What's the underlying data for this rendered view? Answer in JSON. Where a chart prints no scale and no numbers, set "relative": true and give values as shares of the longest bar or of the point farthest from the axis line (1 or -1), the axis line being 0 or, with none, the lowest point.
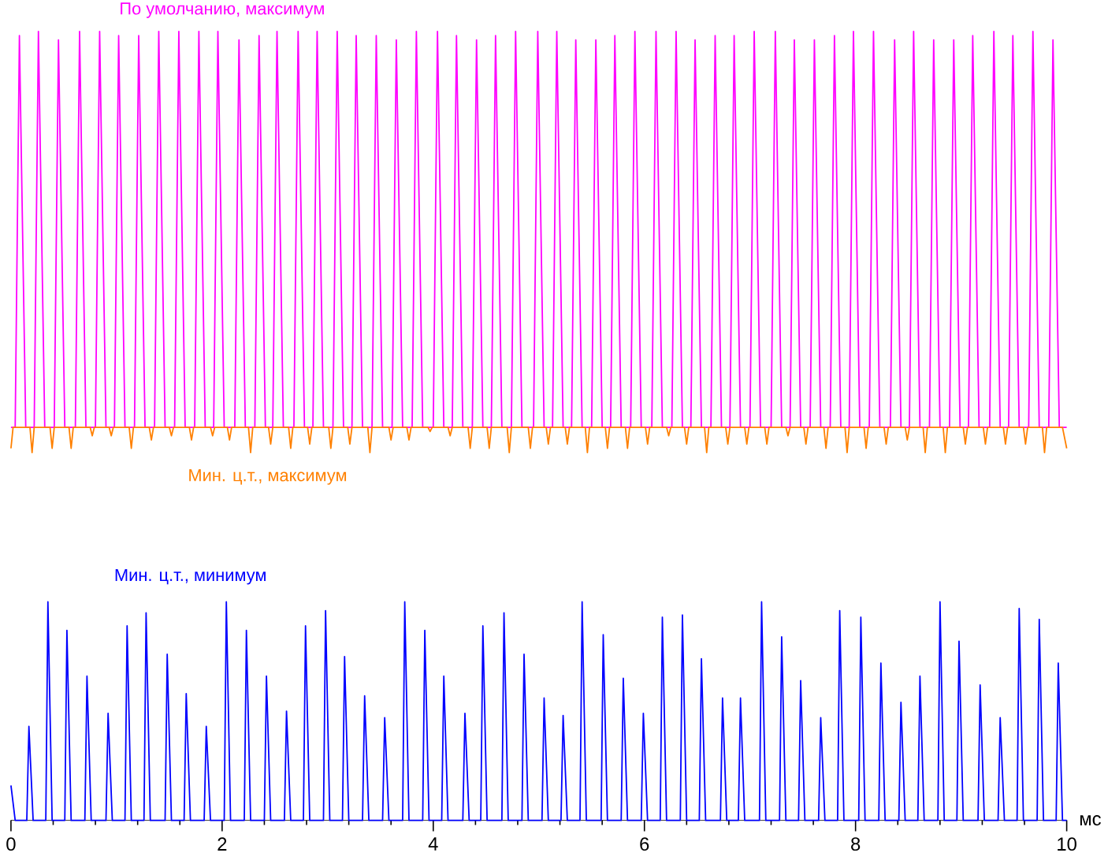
{
  "chart_data": [
    {
      "type": "line",
      "relative": true,
      "xlim": [
        0,
        10
      ],
      "series": [
        {
          "name": "По умолчанию, максимум",
          "color": "#ff00ff",
          "x": [
            0,
            0.04,
            0.08,
            0.14,
            0.22,
            0.26,
            0.32,
            0.41,
            0.45,
            0.51,
            0.61,
            0.65,
            0.71,
            0.8,
            0.84,
            0.9,
            0.98,
            1.02,
            1.08,
            1.17,
            1.21,
            1.27,
            1.36,
            1.4,
            1.46,
            1.55,
            1.59,
            1.65,
            1.74,
            1.78,
            1.84,
            1.92,
            1.96,
            2.02,
            2.12,
            2.16,
            2.22,
            2.31,
            2.35,
            2.41,
            2.48,
            2.52,
            2.58,
            2.68,
            2.72,
            2.78,
            2.86,
            2.9,
            2.96,
            3.05,
            3.09,
            3.15,
            3.23,
            3.27,
            3.33,
            3.42,
            3.46,
            3.52,
            3.61,
            3.65,
            3.71,
            3.8,
            3.84,
            3.9,
            4.0,
            4.04,
            4.1,
            4.18,
            4.22,
            4.28,
            4.37,
            4.41,
            4.47,
            4.55,
            4.59,
            4.65,
            4.74,
            4.78,
            4.84,
            4.95,
            4.99,
            5.05,
            5.13,
            5.17,
            5.23,
            5.31,
            5.35,
            5.41,
            5.5,
            5.54,
            5.6,
            5.68,
            5.72,
            5.78,
            5.87,
            5.91,
            5.97,
            6.07,
            6.11,
            6.17,
            6.26,
            6.3,
            6.36,
            6.44,
            6.48,
            6.54,
            6.63,
            6.67,
            6.73,
            6.81,
            6.85,
            6.91,
            7.0,
            7.04,
            7.1,
            7.2,
            7.24,
            7.3,
            7.38,
            7.42,
            7.48,
            7.57,
            7.61,
            7.67,
            7.76,
            7.8,
            7.86,
            7.94,
            7.98,
            8.04,
            8.13,
            8.17,
            8.23,
            8.33,
            8.37,
            8.43,
            8.51,
            8.55,
            8.61,
            8.7,
            8.74,
            8.8,
            8.89,
            8.93,
            8.99,
            9.07,
            9.11,
            9.17,
            9.27,
            9.31,
            9.37,
            9.45,
            9.49,
            9.55,
            9.64,
            9.68,
            9.74,
            9.83,
            9.87,
            9.93,
            10
          ],
          "values": [
            0.06,
            0.06,
            0.99,
            0.06,
            0.06,
            1.0,
            0.06,
            0.06,
            0.98,
            0.06,
            0.06,
            1.0,
            0.06,
            0.06,
            1.0,
            0.06,
            0.06,
            0.99,
            0.06,
            0.06,
            0.99,
            0.06,
            0.06,
            1.0,
            0.06,
            0.06,
            1.0,
            0.06,
            0.06,
            1.0,
            0.06,
            0.06,
            1.0,
            0.06,
            0.06,
            0.98,
            0.06,
            0.06,
            0.99,
            0.06,
            0.06,
            1.0,
            0.06,
            0.06,
            1.0,
            0.06,
            0.06,
            1.0,
            0.06,
            0.06,
            1.0,
            0.06,
            0.06,
            0.99,
            0.06,
            0.06,
            0.99,
            0.06,
            0.06,
            0.98,
            0.06,
            0.06,
            1.0,
            0.06,
            0.06,
            1.0,
            0.06,
            0.06,
            0.99,
            0.06,
            0.06,
            0.98,
            0.06,
            0.06,
            0.99,
            0.06,
            0.06,
            1.0,
            0.06,
            0.06,
            1.0,
            0.06,
            0.06,
            1.0,
            0.06,
            0.06,
            0.98,
            0.06,
            0.06,
            0.98,
            0.06,
            0.06,
            0.99,
            0.06,
            0.06,
            1.0,
            0.06,
            0.06,
            1.0,
            0.06,
            0.06,
            1.0,
            0.06,
            0.06,
            0.98,
            0.06,
            0.06,
            0.99,
            0.06,
            0.06,
            0.99,
            0.06,
            0.06,
            1.0,
            0.06,
            0.06,
            1.0,
            0.06,
            0.06,
            0.98,
            0.06,
            0.06,
            0.98,
            0.06,
            0.06,
            0.99,
            0.06,
            0.06,
            1.0,
            0.06,
            0.06,
            1.0,
            0.06,
            0.06,
            0.98,
            0.06,
            0.06,
            1.0,
            0.06,
            0.06,
            0.98,
            0.06,
            0.06,
            0.98,
            0.06,
            0.06,
            0.99,
            0.06,
            0.06,
            1.0,
            0.06,
            0.06,
            0.99,
            0.06,
            0.06,
            1.0,
            0.06,
            0.06,
            0.98,
            0.06,
            0.06
          ]
        },
        {
          "name": "Мин. ц.т., максимум",
          "color": "#ff8000",
          "x": [
            0,
            0.02,
            0.18,
            0.2,
            0.22,
            0.37,
            0.39,
            0.41,
            0.55,
            0.57,
            0.59,
            0.75,
            0.77,
            0.79,
            0.93,
            0.95,
            0.97,
            1.12,
            1.14,
            1.16,
            1.31,
            1.33,
            1.35,
            1.5,
            1.52,
            1.54,
            1.69,
            1.71,
            1.73,
            1.89,
            1.91,
            1.93,
            2.05,
            2.07,
            2.09,
            2.25,
            2.27,
            2.29,
            2.44,
            2.46,
            2.48,
            2.63,
            2.65,
            2.67,
            2.81,
            2.83,
            2.85,
            3.01,
            3.03,
            3.05,
            3.19,
            3.21,
            3.23,
            3.38,
            3.4,
            3.42,
            3.58,
            3.6,
            3.62,
            3.75,
            3.77,
            3.79,
            3.95,
            3.97,
            3.99,
            4.14,
            4.16,
            4.18,
            4.33,
            4.35,
            4.37,
            4.51,
            4.53,
            4.55,
            4.7,
            4.72,
            4.74,
            4.9,
            4.92,
            4.94,
            5.07,
            5.09,
            5.11,
            5.25,
            5.27,
            5.29,
            5.44,
            5.46,
            5.48,
            5.63,
            5.65,
            5.67,
            5.82,
            5.84,
            5.86,
            6.01,
            6.03,
            6.05,
            6.21,
            6.23,
            6.25,
            6.38,
            6.4,
            6.42,
            6.57,
            6.59,
            6.61,
            6.77,
            6.79,
            6.81,
            6.95,
            6.97,
            6.99,
            7.14,
            7.16,
            7.18,
            7.34,
            7.36,
            7.38,
            7.51,
            7.53,
            7.55,
            7.7,
            7.72,
            7.74,
            7.9,
            7.92,
            7.94,
            8.08,
            8.1,
            8.12,
            8.27,
            8.29,
            8.31,
            8.47,
            8.49,
            8.51,
            8.64,
            8.66,
            8.68,
            8.83,
            8.85,
            8.87,
            9.02,
            9.04,
            9.06,
            9.21,
            9.23,
            9.25,
            9.4,
            9.42,
            9.44,
            9.59,
            9.61,
            9.63,
            9.77,
            9.79,
            9.81,
            9.96,
            10
          ],
          "values": [
            0.01,
            0.06,
            0.06,
            0,
            0.06,
            0.06,
            0.01,
            0.06,
            0.06,
            0.01,
            0.06,
            0.06,
            0.04,
            0.06,
            0.06,
            0.04,
            0.06,
            0.06,
            0.01,
            0.06,
            0.06,
            0.03,
            0.06,
            0.06,
            0.04,
            0.06,
            0.06,
            0.03,
            0.06,
            0.06,
            0.04,
            0.06,
            0.06,
            0.03,
            0.06,
            0.06,
            0,
            0.06,
            0.06,
            0.02,
            0.06,
            0.06,
            0.01,
            0.06,
            0.06,
            0.02,
            0.06,
            0.06,
            0.01,
            0.06,
            0.06,
            0.02,
            0.06,
            0.06,
            0,
            0.06,
            0.06,
            0.03,
            0.06,
            0.06,
            0.03,
            0.06,
            0.06,
            0.05,
            0.06,
            0.06,
            0.04,
            0.06,
            0.06,
            0.01,
            0.06,
            0.06,
            0.01,
            0.06,
            0.06,
            0,
            0.06,
            0.06,
            0.01,
            0.06,
            0.06,
            0.02,
            0.06,
            0.06,
            0.02,
            0.06,
            0.06,
            0,
            0.06,
            0.06,
            0.01,
            0.06,
            0.06,
            0.01,
            0.06,
            0.06,
            0.02,
            0.06,
            0.06,
            0.04,
            0.06,
            0.06,
            0.02,
            0.06,
            0.06,
            0,
            0.06,
            0.06,
            0.02,
            0.06,
            0.06,
            0.02,
            0.06,
            0.06,
            0.02,
            0.06,
            0.06,
            0.04,
            0.06,
            0.06,
            0.02,
            0.06,
            0.06,
            0.01,
            0.06,
            0.06,
            0,
            0.06,
            0.06,
            0.01,
            0.06,
            0.06,
            0.02,
            0.06,
            0.06,
            0.03,
            0.06,
            0.06,
            0,
            0.06,
            0.06,
            0,
            0.06,
            0.06,
            0.02,
            0.06,
            0.06,
            0.02,
            0.06,
            0.06,
            0.02,
            0.06,
            0.06,
            0.02,
            0.06,
            0.06,
            0,
            0.06,
            0.06,
            0.01
          ]
        }
      ]
    },
    {
      "type": "line",
      "relative": true,
      "xlim": [
        0,
        10
      ],
      "xticks": [
        0,
        2,
        4,
        6,
        8,
        10
      ],
      "xlabel": "мс",
      "series": [
        {
          "name": "Мин. ц.т., минимум",
          "color": "#0000ff",
          "x": [
            0,
            0.04,
            0.15,
            0.17,
            0.21,
            0.33,
            0.35,
            0.39,
            0.51,
            0.53,
            0.57,
            0.7,
            0.72,
            0.76,
            0.9,
            0.92,
            0.96,
            1.08,
            1.1,
            1.14,
            1.26,
            1.28,
            1.32,
            1.46,
            1.48,
            1.52,
            1.64,
            1.66,
            1.7,
            1.83,
            1.85,
            1.89,
            2.02,
            2.04,
            2.08,
            2.21,
            2.23,
            2.27,
            2.4,
            2.42,
            2.46,
            2.59,
            2.61,
            2.65,
            2.77,
            2.79,
            2.83,
            2.96,
            2.98,
            3.02,
            3.14,
            3.16,
            3.2,
            3.33,
            3.35,
            3.39,
            3.52,
            3.54,
            3.58,
            3.71,
            3.73,
            3.77,
            3.9,
            3.92,
            3.96,
            4.08,
            4.1,
            4.14,
            4.28,
            4.3,
            4.34,
            4.45,
            4.47,
            4.51,
            4.65,
            4.67,
            4.71,
            4.84,
            4.86,
            4.9,
            5.03,
            5.05,
            5.09,
            5.21,
            5.23,
            5.27,
            5.39,
            5.41,
            5.45,
            5.59,
            5.61,
            5.65,
            5.78,
            5.8,
            5.84,
            5.97,
            5.99,
            6.03,
            6.15,
            6.17,
            6.21,
            6.34,
            6.36,
            6.4,
            6.52,
            6.54,
            6.58,
            6.72,
            6.74,
            6.78,
            6.89,
            6.91,
            6.95,
            7.09,
            7.11,
            7.15,
            7.28,
            7.3,
            7.34,
            7.46,
            7.48,
            7.52,
            7.65,
            7.67,
            7.71,
            7.83,
            7.85,
            7.89,
            8.03,
            8.05,
            8.09,
            8.22,
            8.24,
            8.28,
            8.41,
            8.43,
            8.47,
            8.59,
            8.61,
            8.65,
            8.78,
            8.8,
            8.84,
            8.96,
            8.98,
            9.02,
            9.16,
            9.18,
            9.22,
            9.35,
            9.37,
            9.41,
            9.53,
            9.55,
            9.59,
            9.72,
            9.74,
            9.78,
            9.9,
            9.92,
            9.96,
            10
          ],
          "values": [
            0.16,
            0,
            0,
            0.43,
            0,
            0,
            1.0,
            0,
            0,
            0.87,
            0,
            0,
            0.66,
            0,
            0,
            0.49,
            0,
            0,
            0.89,
            0,
            0,
            0.95,
            0,
            0,
            0.76,
            0,
            0,
            0.58,
            0,
            0,
            0.43,
            0,
            0,
            1.0,
            0,
            0,
            0.87,
            0,
            0,
            0.66,
            0,
            0,
            0.5,
            0,
            0,
            0.89,
            0,
            0,
            0.96,
            0,
            0,
            0.75,
            0,
            0,
            0.57,
            0,
            0,
            0.47,
            0,
            0,
            1.0,
            0,
            0,
            0.87,
            0,
            0,
            0.66,
            0,
            0,
            0.49,
            0,
            0,
            0.89,
            0,
            0,
            0.95,
            0,
            0,
            0.76,
            0,
            0,
            0.56,
            0,
            0,
            0.48,
            0,
            0,
            1.0,
            0,
            0,
            0.85,
            0,
            0,
            0.65,
            0,
            0,
            0.49,
            0,
            0,
            0.93,
            0,
            0,
            0.94,
            0,
            0,
            0.74,
            0,
            0,
            0.56,
            0,
            0,
            0.56,
            0,
            0,
            1.0,
            0,
            0,
            0.84,
            0,
            0,
            0.64,
            0,
            0,
            0.47,
            0,
            0,
            0.96,
            0,
            0,
            0.93,
            0,
            0,
            0.72,
            0,
            0,
            0.54,
            0,
            0,
            0.66,
            0,
            0,
            1.0,
            0,
            0,
            0.82,
            0,
            0,
            0.62,
            0,
            0,
            0.47,
            0,
            0,
            0.97,
            0,
            0,
            0.92,
            0,
            0,
            0.72,
            0,
            0
          ]
        }
      ]
    }
  ]
}
